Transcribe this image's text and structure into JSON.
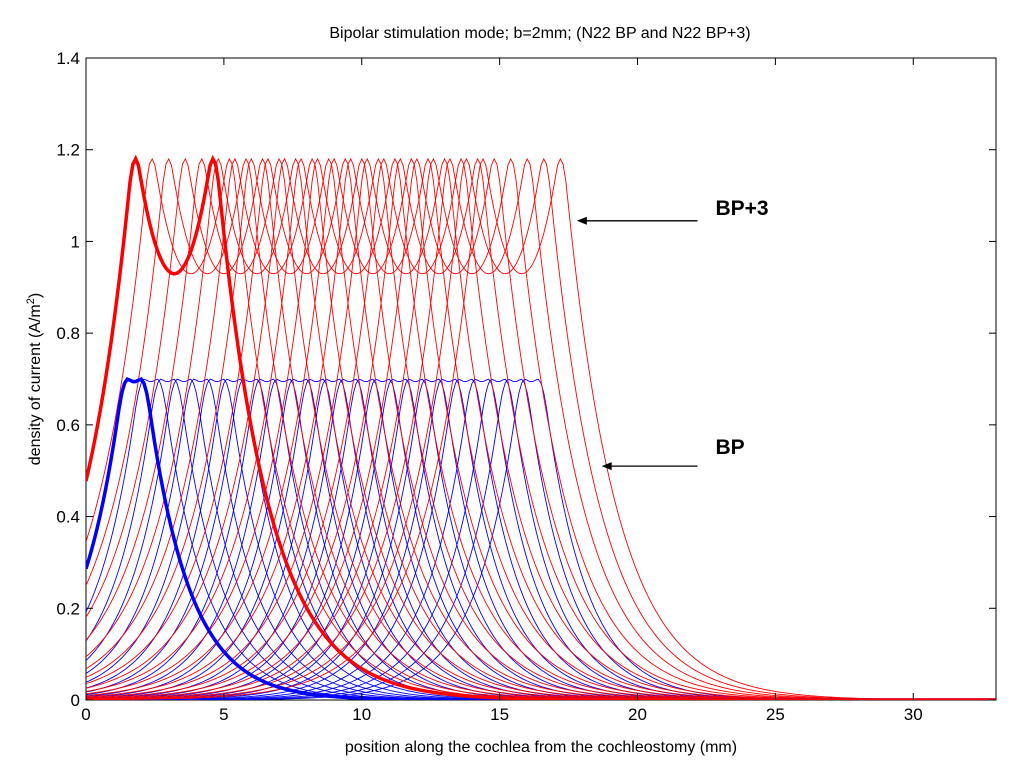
{
  "chart_data": {
    "type": "line",
    "title": "Bipolar stimulation mode;   b=2mm;   (N22 BP  and N22 BP+3)",
    "xlabel": "position along the cochlea from the cochleostomy (mm)",
    "ylabel_main": "density of current (A/m",
    "ylabel_sup": "2",
    "ylabel_end": ")",
    "xlim": [
      0,
      33
    ],
    "ylim": [
      0,
      1.4
    ],
    "xticks": [
      0,
      5,
      10,
      15,
      20,
      25,
      30
    ],
    "yticks": [
      0,
      0.2,
      0.4,
      0.6,
      0.8,
      1,
      1.2,
      1.4
    ],
    "ytick_labels": [
      "0",
      "0.2",
      "0.4",
      "0.6",
      "0.8",
      "1",
      "1.2",
      "1.4"
    ],
    "grid": false,
    "families": [
      {
        "mode": "BP",
        "color": "#0000ff",
        "lobe_peak": 0.7,
        "lobe_separation_mm": 0.75,
        "lobe_sigma_mm": 0.55,
        "lobe_tail_scale_mm": 1.5,
        "electrode_centers_mm": [
          1.75,
          2.35,
          2.95,
          3.55,
          4.15,
          4.75,
          5.35,
          5.95,
          6.55,
          7.15,
          7.75,
          8.35,
          8.95,
          9.55,
          10.15,
          10.75,
          11.35,
          11.95,
          12.55,
          13.15,
          13.75,
          14.35,
          14.95,
          15.55,
          16.15
        ]
      },
      {
        "mode": "BP+3",
        "color": "#ff0000",
        "lobe_peak": 1.18,
        "lobe_separation_mm": 2.9,
        "lobe_sigma_mm": 0.6,
        "lobe_tail_scale_mm": 1.85,
        "electrode_centers_mm": [
          3.2,
          3.8,
          4.4,
          5.0,
          5.6,
          6.2,
          6.8,
          7.4,
          8.0,
          8.6,
          9.2,
          9.8,
          10.4,
          11.0,
          11.6,
          12.2,
          12.8,
          13.4,
          14.0,
          14.6,
          15.2,
          15.8
        ]
      }
    ],
    "annotations": [
      {
        "text": "BP+3",
        "arrow_tip": [
          17.8,
          1.045
        ],
        "text_anchor": [
          20.0,
          1.045
        ]
      },
      {
        "text": "BP",
        "arrow_tip": [
          18.7,
          0.51
        ],
        "text_anchor": [
          20.0,
          0.51
        ]
      }
    ]
  }
}
